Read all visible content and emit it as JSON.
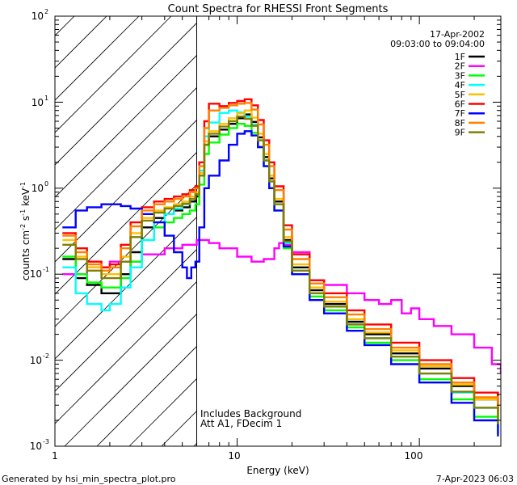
{
  "chart_data": {
    "type": "line",
    "title": "Count Spectra for RHESSI Front Segments",
    "xlabel": "Energy (keV)",
    "ylabel_parts": [
      "counts cm",
      "-2",
      " s",
      "-1",
      " keV",
      "-1"
    ],
    "xscale": "log",
    "yscale": "log",
    "xlim": [
      1,
      280
    ],
    "ylim": [
      0.001,
      100
    ],
    "x_tick_labels": [
      "1",
      "10",
      "100"
    ],
    "y_tick_labels": [
      {
        "base": "10",
        "exp": "-3"
      },
      {
        "base": "10",
        "exp": "-2"
      },
      {
        "base": "10",
        "exp": "-1"
      },
      {
        "base": "10",
        "exp": "0"
      },
      {
        "base": "10",
        "exp": "1"
      },
      {
        "base": "10",
        "exp": "2"
      }
    ],
    "date": "17-Apr-2002",
    "time_range": "09:03:00 to 09:04:00",
    "hatched_region_xmax": 6,
    "annotation": [
      "Includes Background",
      "Att A1, FDecim 1"
    ],
    "series": [
      {
        "name": "1F",
        "color": "#000000",
        "x": [
          1.1,
          1.3,
          1.5,
          1.8,
          2.0,
          2.3,
          2.6,
          3.0,
          3.5,
          4.0,
          4.5,
          5.0,
          5.5,
          5.9,
          6.2,
          6.6,
          7.0,
          8.0,
          9.0,
          10.0,
          11.0,
          12.0,
          13.0,
          14.0,
          15.0,
          16.0,
          18.0,
          20.0,
          25.0,
          30.0,
          40.0,
          50.0,
          70.0,
          100.0,
          150.0,
          200.0,
          270.0
        ],
        "y": [
          0.15,
          0.09,
          0.075,
          0.06,
          0.06,
          0.1,
          0.18,
          0.35,
          0.45,
          0.5,
          0.55,
          0.6,
          0.7,
          0.8,
          1.4,
          3.2,
          4.0,
          4.8,
          5.6,
          6.5,
          7.2,
          5.9,
          3.9,
          2.3,
          1.3,
          0.7,
          0.25,
          0.12,
          0.065,
          0.045,
          0.028,
          0.02,
          0.012,
          0.008,
          0.005,
          0.0035,
          0.0022
        ]
      },
      {
        "name": "2F",
        "color": "#ff00ff",
        "x": [
          1.1,
          1.5,
          2.0,
          3.0,
          4.0,
          5.0,
          6.0,
          7.0,
          8.0,
          10.0,
          12.0,
          14.0,
          16.0,
          17.0,
          18.0,
          20.0,
          25.0,
          30.0,
          40.0,
          50.0,
          60.0,
          70.0,
          80.0,
          90.0,
          100.0,
          120.0,
          150.0,
          200.0,
          250.0,
          280.0
        ],
        "y": [
          0.1,
          0.12,
          0.14,
          0.17,
          0.2,
          0.22,
          0.25,
          0.23,
          0.2,
          0.16,
          0.14,
          0.15,
          0.2,
          0.23,
          0.22,
          0.18,
          0.085,
          0.075,
          0.06,
          0.05,
          0.045,
          0.05,
          0.035,
          0.04,
          0.03,
          0.025,
          0.02,
          0.014,
          0.009,
          0.007
        ]
      },
      {
        "name": "3F",
        "color": "#00ff00",
        "x": [
          1.1,
          1.3,
          1.5,
          1.8,
          2.0,
          2.3,
          2.6,
          3.0,
          3.5,
          4.0,
          4.5,
          5.0,
          5.5,
          5.9,
          6.2,
          6.6,
          7.0,
          8.0,
          9.0,
          10.0,
          11.0,
          12.0,
          13.0,
          14.0,
          15.0,
          16.0,
          18.0,
          20.0,
          25.0,
          30.0,
          40.0,
          50.0,
          70.0,
          100.0,
          150.0,
          200.0,
          270.0
        ],
        "y": [
          0.16,
          0.1,
          0.08,
          0.07,
          0.07,
          0.09,
          0.14,
          0.25,
          0.35,
          0.4,
          0.45,
          0.5,
          0.55,
          0.65,
          1.1,
          2.5,
          3.4,
          4.2,
          5.0,
          5.6,
          5.3,
          4.4,
          3.0,
          1.8,
          1.0,
          0.55,
          0.2,
          0.1,
          0.055,
          0.038,
          0.024,
          0.016,
          0.01,
          0.006,
          0.0035,
          0.0022,
          0.0014
        ]
      },
      {
        "name": "4F",
        "color": "#00ffff",
        "x": [
          1.1,
          1.3,
          1.5,
          1.8,
          2.0,
          2.3,
          2.6,
          3.0,
          3.5,
          4.0,
          4.5,
          5.0,
          5.5,
          5.9,
          6.2,
          6.6,
          7.0,
          8.0,
          9.0,
          10.0,
          11.0,
          12.0,
          13.0,
          14.0,
          15.0,
          16.0,
          18.0,
          20.0,
          25.0,
          30.0,
          40.0,
          50.0,
          70.0,
          100.0,
          150.0,
          200.0,
          270.0
        ],
        "y": [
          0.12,
          0.06,
          0.045,
          0.038,
          0.045,
          0.07,
          0.12,
          0.25,
          0.4,
          0.5,
          0.58,
          0.65,
          0.75,
          0.85,
          1.6,
          4.0,
          5.8,
          7.5,
          8.0,
          7.6,
          6.8,
          5.5,
          3.6,
          2.1,
          1.2,
          0.65,
          0.23,
          0.11,
          0.06,
          0.042,
          0.026,
          0.018,
          0.011,
          0.007,
          0.0042,
          0.0028,
          0.0016
        ]
      },
      {
        "name": "5F",
        "color": "#ffc000",
        "x": [
          1.1,
          1.3,
          1.5,
          1.8,
          2.0,
          2.3,
          2.6,
          3.0,
          3.5,
          4.0,
          4.5,
          5.0,
          5.5,
          5.9,
          6.2,
          6.6,
          7.0,
          8.0,
          9.0,
          10.0,
          11.0,
          12.0,
          13.0,
          14.0,
          15.0,
          16.0,
          18.0,
          20.0,
          25.0,
          30.0,
          40.0,
          50.0,
          70.0,
          100.0,
          150.0,
          200.0,
          270.0
        ],
        "y": [
          0.25,
          0.16,
          0.12,
          0.1,
          0.1,
          0.16,
          0.3,
          0.45,
          0.55,
          0.6,
          0.65,
          0.7,
          0.8,
          0.9,
          1.5,
          3.5,
          4.6,
          5.6,
          6.5,
          7.4,
          8.0,
          6.6,
          4.3,
          2.5,
          1.4,
          0.75,
          0.27,
          0.13,
          0.07,
          0.048,
          0.03,
          0.021,
          0.013,
          0.0085,
          0.0052,
          0.0035,
          0.0022
        ]
      },
      {
        "name": "6F",
        "color": "#ff0000",
        "x": [
          1.1,
          1.3,
          1.5,
          1.8,
          2.0,
          2.3,
          2.6,
          3.0,
          3.5,
          4.0,
          4.5,
          5.0,
          5.5,
          5.9,
          6.2,
          6.6,
          7.0,
          8.0,
          9.0,
          10.0,
          11.0,
          12.0,
          13.0,
          14.0,
          15.0,
          16.0,
          18.0,
          20.0,
          25.0,
          30.0,
          40.0,
          50.0,
          70.0,
          100.0,
          150.0,
          200.0,
          270.0
        ],
        "y": [
          0.3,
          0.2,
          0.14,
          0.12,
          0.13,
          0.22,
          0.4,
          0.6,
          0.7,
          0.75,
          0.8,
          0.85,
          0.95,
          1.05,
          2.0,
          6.0,
          9.6,
          9.0,
          9.8,
          10.3,
          10.8,
          9.2,
          6.2,
          3.6,
          2.0,
          1.05,
          0.37,
          0.17,
          0.085,
          0.06,
          0.038,
          0.026,
          0.016,
          0.01,
          0.0062,
          0.0042,
          0.0026
        ]
      },
      {
        "name": "7F",
        "color": "#0000ff",
        "x": [
          1.1,
          1.3,
          1.5,
          1.8,
          2.0,
          2.3,
          2.6,
          3.0,
          3.5,
          4.0,
          4.5,
          5.0,
          5.3,
          5.6,
          5.9,
          6.2,
          6.6,
          7.0,
          8.0,
          9.0,
          10.0,
          11.0,
          12.0,
          13.0,
          14.0,
          15.0,
          16.0,
          18.0,
          20.0,
          25.0,
          30.0,
          40.0,
          50.0,
          70.0,
          100.0,
          150.0,
          200.0,
          270.0
        ],
        "y": [
          0.35,
          0.55,
          0.6,
          0.65,
          0.65,
          0.62,
          0.58,
          0.5,
          0.4,
          0.28,
          0.18,
          0.12,
          0.09,
          0.12,
          0.14,
          0.35,
          1.0,
          1.4,
          2.1,
          3.2,
          4.3,
          4.6,
          4.1,
          3.0,
          1.8,
          1.0,
          0.55,
          0.21,
          0.1,
          0.05,
          0.035,
          0.022,
          0.015,
          0.009,
          0.0055,
          0.0032,
          0.002,
          0.0013
        ]
      },
      {
        "name": "8F",
        "color": "#ff8000",
        "x": [
          1.1,
          1.3,
          1.5,
          1.8,
          2.0,
          2.3,
          2.6,
          3.0,
          3.5,
          4.0,
          4.5,
          5.0,
          5.5,
          5.9,
          6.2,
          6.6,
          7.0,
          8.0,
          9.0,
          10.0,
          11.0,
          12.0,
          13.0,
          14.0,
          15.0,
          16.0,
          18.0,
          20.0,
          25.0,
          30.0,
          40.0,
          50.0,
          70.0,
          100.0,
          150.0,
          200.0,
          270.0
        ],
        "y": [
          0.28,
          0.18,
          0.13,
          0.11,
          0.12,
          0.2,
          0.36,
          0.55,
          0.65,
          0.7,
          0.75,
          0.8,
          0.9,
          1.0,
          1.8,
          5.0,
          8.0,
          8.6,
          9.2,
          9.6,
          9.8,
          8.2,
          5.5,
          3.2,
          1.8,
          0.95,
          0.33,
          0.15,
          0.078,
          0.054,
          0.034,
          0.023,
          0.014,
          0.009,
          0.0055,
          0.0037,
          0.0023
        ]
      },
      {
        "name": "9F",
        "color": "#808000",
        "x": [
          1.1,
          1.3,
          1.5,
          1.8,
          2.0,
          2.3,
          2.6,
          3.0,
          3.5,
          4.0,
          4.5,
          5.0,
          5.5,
          5.9,
          6.2,
          6.6,
          7.0,
          8.0,
          9.0,
          10.0,
          11.0,
          12.0,
          13.0,
          14.0,
          15.0,
          16.0,
          18.0,
          20.0,
          25.0,
          30.0,
          40.0,
          50.0,
          70.0,
          100.0,
          150.0,
          200.0,
          270.0
        ],
        "y": [
          0.22,
          0.15,
          0.11,
          0.09,
          0.09,
          0.14,
          0.27,
          0.42,
          0.52,
          0.58,
          0.62,
          0.66,
          0.75,
          0.85,
          1.4,
          3.2,
          4.3,
          5.2,
          6.0,
          6.8,
          6.4,
          5.3,
          3.6,
          2.1,
          1.2,
          0.65,
          0.24,
          0.11,
          0.06,
          0.042,
          0.026,
          0.018,
          0.011,
          0.007,
          0.0043,
          0.0028,
          0.0018
        ]
      }
    ]
  },
  "footer": {
    "generated_by": "Generated by hsi_min_spectra_plot.pro",
    "timestamp": "7-Apr-2023 06:03"
  }
}
